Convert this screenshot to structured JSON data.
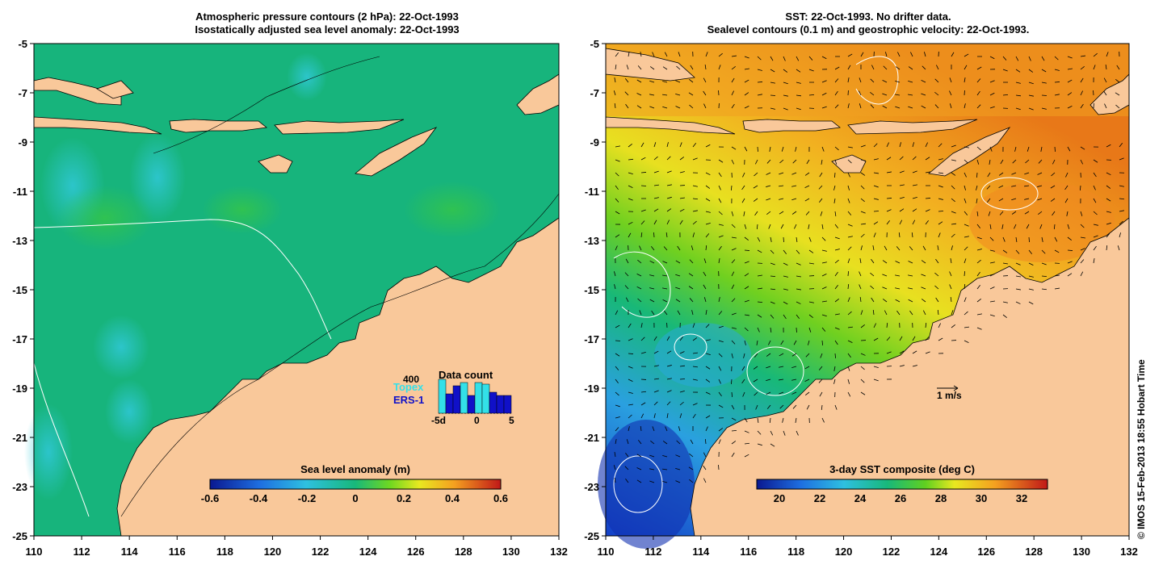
{
  "left_panel": {
    "title_line1": "Atmospheric pressure contours (2 hPa): 22-Oct-1993",
    "title_line2": "Isostatically adjusted sea level anomaly: 22-Oct-1993",
    "colorbar_label": "Sea level anomaly (m)",
    "colorbar_ticks": [
      "-0.6",
      "-0.4",
      "-0.2",
      "0",
      "0.2",
      "0.4",
      "0.6"
    ],
    "data_count": {
      "title": "Data count",
      "scale_label": "400",
      "topex_label": "Topex",
      "ers_label": "ERS-1",
      "x_ticks": [
        "-5d",
        "0",
        "5"
      ]
    }
  },
  "right_panel": {
    "title_line1": "SST: 22-Oct-1993. No drifter data.",
    "title_line2": "Sealevel contours (0.1 m) and geostrophic velocity: 22-Oct-1993.",
    "colorbar_label": "3-day SST composite (deg C)",
    "colorbar_ticks": [
      "20",
      "22",
      "24",
      "26",
      "28",
      "30",
      "32"
    ],
    "velocity_scale_label": "1 m/s"
  },
  "x_ticks": [
    "110",
    "112",
    "114",
    "116",
    "118",
    "120",
    "122",
    "124",
    "126",
    "128",
    "130",
    "132"
  ],
  "y_ticks": [
    "-5",
    "-7",
    "-9",
    "-11",
    "-13",
    "-15",
    "-17",
    "-19",
    "-21",
    "-23",
    "-25"
  ],
  "credit": "© IMOS 15-Feb-2013 18:55 Hobart Time",
  "colors": {
    "land": "#f9c89a",
    "ocean_sla": "#17b47c",
    "sst_warm": "#f0a020",
    "sst_cool": "#1a50d0",
    "topex": "#33e0e8",
    "ers1": "#1010c8"
  }
}
